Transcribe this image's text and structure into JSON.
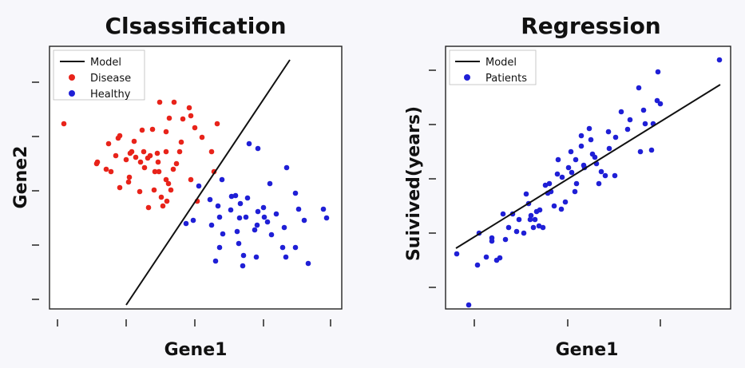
{
  "chart_data": [
    {
      "type": "scatter",
      "title": "Clsassification",
      "xlabel": "Gene1",
      "ylabel": "Gene2",
      "series": [
        {
          "name": "Disease",
          "color": "#e8231a",
          "x": [
            80,
            175,
            200,
            212,
            218,
            237,
            244,
            272,
            188,
            208,
            227,
            253,
            150,
            168,
            178,
            191,
            208,
            229,
            239,
            265,
            136,
            148,
            165,
            180,
            197,
            225,
            145,
            158,
            170,
            185,
            198,
            221,
            122,
            133,
            163,
            176,
            194,
            208,
            217,
            121,
            139,
            162,
            181,
            199,
            214,
            211,
            268,
            150,
            175,
            202,
            239,
            247,
            161,
            193,
            186,
            209,
            204
          ],
          "y": [
            155,
            117,
            128,
            148,
            128,
            135,
            160,
            155,
            195,
            190,
            178,
            172,
            170,
            177,
            163,
            162,
            165,
            149,
            145,
            190,
            180,
            173,
            190,
            190,
            192,
            190,
            195,
            200,
            197,
            198,
            203,
            205,
            203,
            212,
            192,
            203,
            215,
            225,
            212,
            205,
            215,
            222,
            210,
            215,
            238,
            230,
            215,
            235,
            240,
            247,
            225,
            252,
            228,
            238,
            260,
            252,
            258
          ]
        },
        {
          "name": "Healthy",
          "color": "#1f1fd6",
          "x": [
            312,
            323,
            359,
            405,
            409,
            278,
            295,
            301,
            338,
            370,
            374,
            249,
            263,
            273,
            290,
            310,
            330,
            346,
            233,
            265,
            308,
            323,
            335,
            356,
            242,
            275,
            289,
            300,
            322,
            331,
            381,
            279,
            297,
            319,
            340,
            275,
            299,
            354,
            370,
            270,
            305,
            321,
            358,
            386,
            304
          ],
          "y": [
            180,
            186,
            210,
            262,
            273,
            225,
            245,
            255,
            230,
            242,
            262,
            233,
            250,
            258,
            246,
            248,
            260,
            268,
            280,
            282,
            272,
            265,
            278,
            285,
            276,
            272,
            263,
            273,
            282,
            272,
            276,
            293,
            290,
            288,
            294,
            310,
            305,
            310,
            310,
            327,
            320,
            322,
            322,
            330,
            333
          ]
        },
        {
          "name": "Model",
          "color": "#111111",
          "line": true,
          "x": [
            158,
            363
          ],
          "y": [
            382,
            75
          ]
        }
      ],
      "legend": "top-left",
      "grid": false
    },
    {
      "type": "scatter",
      "title": "Regression",
      "xlabel": "Gene1",
      "ylabel": "Suivived(years)",
      "series": [
        {
          "name": "Patients",
          "color": "#1f1fd6",
          "x": [
            572,
            600,
            598,
            587,
            616,
            630,
            626,
            616,
            622,
            637,
            659,
            642,
            650,
            668,
            662,
            675,
            670,
            680,
            676,
            686,
            690,
            698,
            683,
            694,
            708,
            712,
            704,
            716,
            721,
            728,
            722,
            740,
            738,
            731,
            747,
            750,
            758,
            742,
            753,
            763,
            762,
            771,
            786,
            789,
            778,
            800,
            808,
            818,
            823,
            827,
            802,
            816,
            806,
            901,
            824,
            770,
            745,
            728,
            732,
            715,
            699,
            688,
            672,
            656,
            664,
            647,
            633,
            609,
            665,
            703,
            720
          ],
          "y": [
            318,
            292,
            332,
            382,
            302,
            268,
            323,
            298,
            326,
            285,
            243,
            268,
            275,
            285,
            255,
            283,
            275,
            285,
            263,
            242,
            240,
            218,
            232,
            258,
            253,
            210,
            222,
            216,
            200,
            183,
            230,
            175,
            161,
            207,
            205,
            230,
            220,
            193,
            215,
            186,
            165,
            172,
            162,
            150,
            140,
            110,
            155,
            155,
            126,
            130,
            190,
            188,
            138,
            75,
            90,
            220,
            197,
            170,
            210,
            190,
            200,
            230,
            265,
            292,
            275,
            290,
            300,
            322,
            270,
            262,
            240
          ]
        },
        {
          "name": "Model",
          "color": "#111111",
          "line": true,
          "x": [
            571,
            902
          ],
          "y": [
            311,
            106
          ]
        }
      ],
      "legend": "top-left",
      "grid": false
    }
  ]
}
